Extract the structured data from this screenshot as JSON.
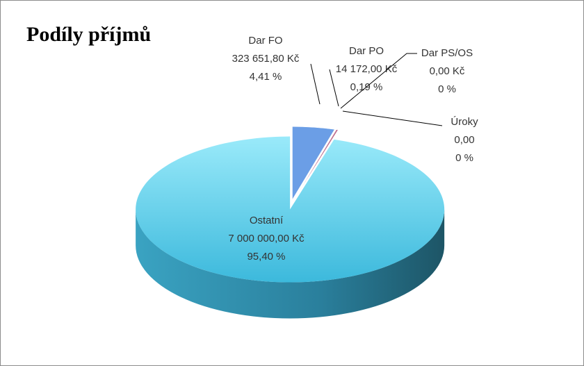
{
  "chart_data": {
    "type": "pie3d",
    "title": "Podíly příjmů",
    "categories": [
      "Dar FO",
      "Dar PO",
      "Dar PS/OS",
      "Úroky",
      "Ostatní"
    ],
    "values": [
      323651.8,
      14172.0,
      0,
      0,
      7000000.0
    ],
    "value_labels": [
      "323 651,80 Kč",
      "14 172,00 Kč",
      "0,00 Kč",
      "0,00",
      "7 000 000,00 Kč"
    ],
    "percents": [
      4.41,
      0.19,
      0,
      0,
      95.4
    ],
    "percent_labels": [
      "4,41 %",
      "0,19 %",
      "0 %",
      "0 %",
      "95,40 %"
    ],
    "colors": [
      "#6b9ee6",
      "#c0708f",
      "#9aa36a",
      "#8a78b0",
      "#5fd2ec"
    ]
  }
}
